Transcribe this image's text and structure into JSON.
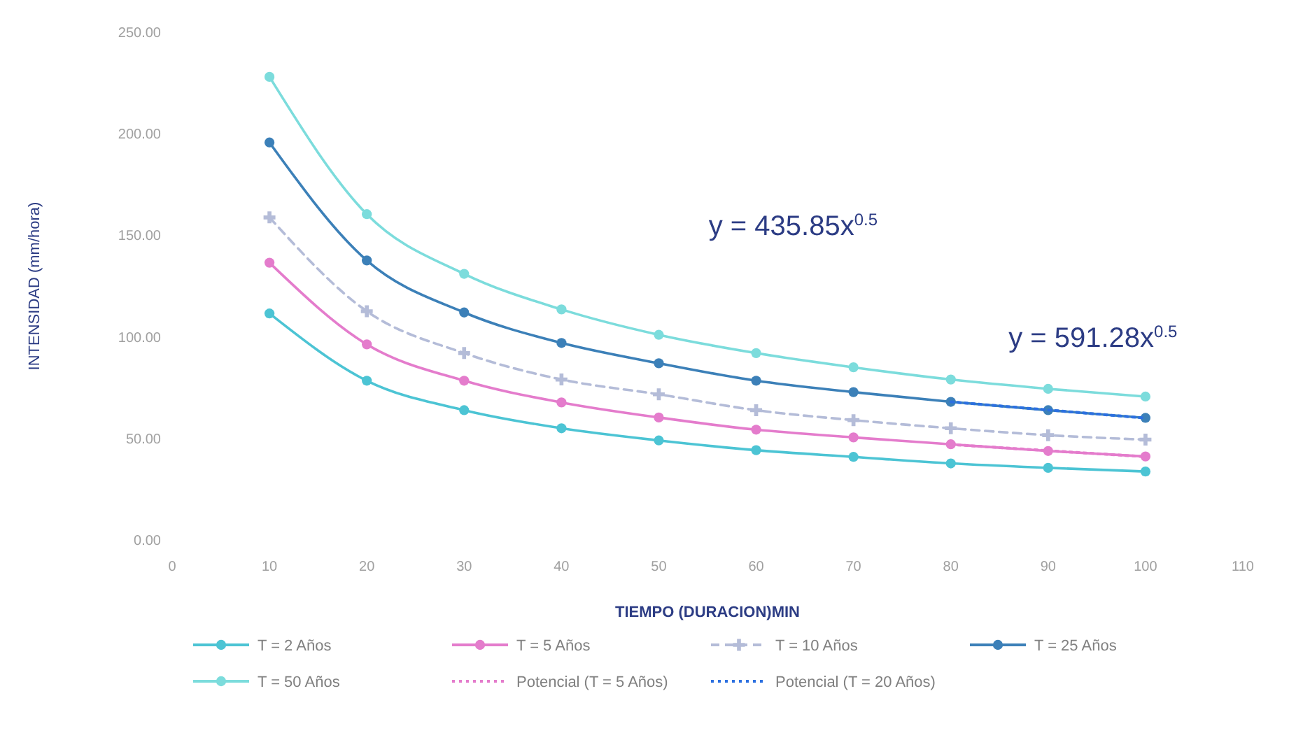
{
  "chart_data": {
    "type": "line",
    "xlabel": "TIEMPO (DURACION)MIN",
    "ylabel": "INTENSIDAD (mm/hora)",
    "x": [
      10,
      20,
      30,
      40,
      50,
      60,
      70,
      80,
      90,
      100
    ],
    "xlim": [
      0,
      110
    ],
    "xticks": [
      0,
      10,
      20,
      30,
      40,
      50,
      60,
      70,
      80,
      90,
      100,
      110
    ],
    "ylim": [
      0,
      250
    ],
    "yticks": [
      {
        "value": 0,
        "label": "0.00"
      },
      {
        "value": 50,
        "label": "50.00"
      },
      {
        "value": 100,
        "label": "100.00"
      },
      {
        "value": 150,
        "label": "150.00"
      },
      {
        "value": 200,
        "label": "200.00"
      },
      {
        "value": 250,
        "label": "250.00"
      }
    ],
    "legend": "bottom",
    "marker": "circle",
    "line_style": "solid",
    "series": [
      {
        "name": "T = 2 Años",
        "color": "#4cc4d4",
        "values": [
          111.5,
          78.4,
          63.9,
          55,
          49,
          44.2,
          40.9,
          37.7,
          35.5,
          33.7
        ]
      },
      {
        "name": "T = 5 Años",
        "color": "#e47ccc",
        "values": [
          136.5,
          96.3,
          78.4,
          67.7,
          60.3,
          54.3,
          50.5,
          47.1,
          43.8,
          41.1
        ]
      },
      {
        "name": "T = 10 Años",
        "color": "#b4bcd8",
        "marker": "cross",
        "line_style": "dashed",
        "values": [
          158.8,
          112.6,
          92,
          79,
          71.7,
          63.9,
          59,
          55,
          51.6,
          49.4
        ]
      },
      {
        "name": "T = 25 Años",
        "color": "#3c80b8",
        "values": [
          195.7,
          137.6,
          112,
          97,
          87,
          78.4,
          72.8,
          68,
          63.9,
          60.1
        ]
      },
      {
        "name": "T = 50 Años",
        "color": "#7cdcdc",
        "values": [
          228,
          160.4,
          131,
          113.5,
          101,
          92,
          85,
          79,
          74.4,
          70.6
        ]
      },
      {
        "name": "Potencial (T = 5 Años)",
        "color": "#e47ccc",
        "marker": "none",
        "line_style": "dotted",
        "x": [
          80,
          90,
          100
        ],
        "values": [
          47,
          44,
          41
        ]
      },
      {
        "name": "Potencial (T = 20 Años)",
        "color": "#2c70e0",
        "marker": "none",
        "line_style": "dotted",
        "x": [
          80,
          90,
          100
        ],
        "values": [
          68,
          64,
          60
        ]
      }
    ],
    "annotations": [
      "y = 435.85x$^{0.5}$",
      "y = 591.28x$^{0.5}$"
    ]
  }
}
